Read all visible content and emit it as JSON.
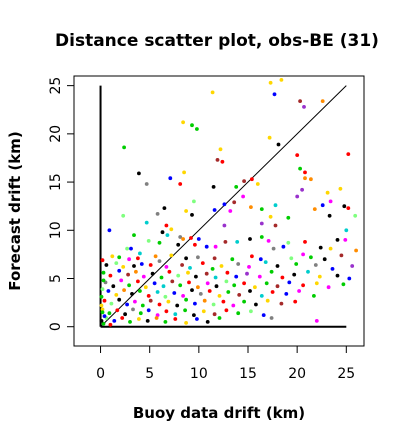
{
  "chart_data": {
    "type": "scatter",
    "title": "Distance scatter plot, obs-BE (31)",
    "xlabel": "Buoy data drift (km)",
    "ylabel": "Forecast drift (km)",
    "xlim": [
      -2.7,
      26.8
    ],
    "ylim": [
      -2.0,
      26.0
    ],
    "xticks": [
      0,
      5,
      10,
      15,
      20,
      25
    ],
    "yticks": [
      0,
      5,
      10,
      15,
      20,
      25
    ],
    "grid": false,
    "reference_lines": [
      {
        "name": "identity",
        "x": [
          0,
          25
        ],
        "y": [
          0,
          25
        ]
      },
      {
        "name": "x-axis-bar",
        "x": [
          0,
          25
        ],
        "y": [
          0,
          0
        ]
      },
      {
        "name": "y-axis-bar",
        "x": [
          0,
          0
        ],
        "y": [
          0,
          25
        ]
      }
    ],
    "colors": [
      "#000000",
      "#ff0000",
      "#00cd00",
      "#0000ff",
      "#00cdcd",
      "#ff00ff",
      "#ffd700",
      "#808080",
      "#7fff7f",
      "#a52a2a",
      "#ff8c00",
      "#9932cc"
    ],
    "points": [
      [
        17.3,
        25.3,
        6
      ],
      [
        18.4,
        25.6,
        6
      ],
      [
        11.4,
        24.3,
        6
      ],
      [
        17.7,
        24.1,
        3
      ],
      [
        20.3,
        23.4,
        9
      ],
      [
        22.6,
        23.4,
        10
      ],
      [
        20.7,
        22.8,
        11
      ],
      [
        8.4,
        21.2,
        6
      ],
      [
        9.3,
        20.9,
        2
      ],
      [
        9.8,
        20.5,
        2
      ],
      [
        17.2,
        19.6,
        6
      ],
      [
        18.1,
        18.9,
        0
      ],
      [
        2.4,
        18.6,
        2
      ],
      [
        12.2,
        18.4,
        6
      ],
      [
        20.0,
        17.8,
        1
      ],
      [
        25.2,
        17.9,
        1
      ],
      [
        11.9,
        17.3,
        9
      ],
      [
        12.4,
        17.1,
        1
      ],
      [
        20.3,
        16.4,
        2
      ],
      [
        20.8,
        16.0,
        1
      ],
      [
        3.9,
        15.9,
        0
      ],
      [
        8.5,
        16.0,
        6
      ],
      [
        15.4,
        15.3,
        1
      ],
      [
        16.0,
        14.8,
        6
      ],
      [
        14.6,
        15.1,
        9
      ],
      [
        20.8,
        15.4,
        10
      ],
      [
        21.4,
        15.3,
        10
      ],
      [
        7.1,
        15.4,
        3
      ],
      [
        13.8,
        14.5,
        2
      ],
      [
        23.1,
        13.9,
        6
      ],
      [
        24.4,
        14.3,
        6
      ],
      [
        4.7,
        14.8,
        7
      ],
      [
        8.1,
        14.8,
        1
      ],
      [
        11.5,
        14.5,
        0
      ],
      [
        20.5,
        14.2,
        11
      ],
      [
        14.5,
        13.5,
        5
      ],
      [
        17.8,
        12.6,
        4
      ],
      [
        20.0,
        13.5,
        11
      ],
      [
        9.5,
        13.0,
        8
      ],
      [
        15.3,
        12.4,
        10
      ],
      [
        13.6,
        12.9,
        9
      ],
      [
        12.6,
        12.7,
        3
      ],
      [
        22.6,
        12.6,
        3
      ],
      [
        23.4,
        13.0,
        5
      ],
      [
        24.8,
        12.5,
        0
      ],
      [
        25.9,
        11.5,
        8
      ],
      [
        25.2,
        12.3,
        1
      ],
      [
        6.5,
        12.3,
        0
      ],
      [
        8.7,
        12.0,
        6
      ],
      [
        11.6,
        12.1,
        3
      ],
      [
        13.2,
        12.0,
        5
      ],
      [
        16.4,
        12.2,
        2
      ],
      [
        17.3,
        11.4,
        6
      ],
      [
        19.1,
        11.3,
        2
      ],
      [
        21.8,
        12.2,
        10
      ],
      [
        9.3,
        11.6,
        0
      ],
      [
        2.3,
        11.5,
        8
      ],
      [
        5.8,
        11.7,
        7
      ],
      [
        4.7,
        10.8,
        4
      ],
      [
        16.4,
        10.7,
        11
      ],
      [
        17.8,
        10.5,
        9
      ],
      [
        23.3,
        11.5,
        0
      ],
      [
        12.6,
        10.5,
        11
      ],
      [
        6.7,
        10.5,
        1
      ],
      [
        7.2,
        10.1,
        6
      ],
      [
        0.9,
        10.0,
        3
      ],
      [
        6.3,
        9.8,
        0
      ],
      [
        3.4,
        9.5,
        2
      ],
      [
        6.8,
        9.5,
        4
      ],
      [
        8.1,
        9.3,
        7
      ],
      [
        8.4,
        9.1,
        10
      ],
      [
        9.2,
        9.2,
        1
      ],
      [
        10.0,
        9.1,
        3
      ],
      [
        15.2,
        9.1,
        0
      ],
      [
        16.4,
        9.3,
        2
      ],
      [
        17.1,
        8.9,
        5
      ],
      [
        19.1,
        8.7,
        8
      ],
      [
        20.8,
        8.8,
        1
      ],
      [
        24.1,
        9.0,
        0
      ],
      [
        25.0,
        10.0,
        4
      ],
      [
        24.9,
        9.0,
        5
      ],
      [
        4.9,
        8.9,
        8
      ],
      [
        6.0,
        8.7,
        2
      ],
      [
        7.9,
        8.5,
        0
      ],
      [
        9.6,
        8.5,
        1
      ],
      [
        10.8,
        8.3,
        3
      ],
      [
        11.7,
        8.3,
        5
      ],
      [
        12.7,
        8.8,
        9
      ],
      [
        13.9,
        8.8,
        4
      ],
      [
        17.6,
        8.1,
        7
      ],
      [
        18.6,
        8.3,
        3
      ],
      [
        22.4,
        8.2,
        0
      ],
      [
        23.4,
        8.1,
        6
      ],
      [
        26.0,
        7.9,
        10
      ],
      [
        2.7,
        8.1,
        8
      ],
      [
        3.1,
        8.1,
        3
      ],
      [
        4.0,
        7.6,
        4
      ],
      [
        1.2,
        7.3,
        6
      ],
      [
        1.9,
        7.2,
        2
      ],
      [
        2.9,
        7.0,
        5
      ],
      [
        3.8,
        7.1,
        1
      ],
      [
        5.6,
        7.3,
        10
      ],
      [
        7.2,
        7.4,
        6
      ],
      [
        8.7,
        7.1,
        0
      ],
      [
        9.9,
        7.2,
        7
      ],
      [
        11.6,
        7.1,
        9
      ],
      [
        13.4,
        7.0,
        2
      ],
      [
        15.4,
        7.3,
        1
      ],
      [
        16.3,
        7.0,
        3
      ],
      [
        19.4,
        7.1,
        8
      ],
      [
        20.6,
        7.5,
        5
      ],
      [
        21.4,
        7.2,
        2
      ],
      [
        22.8,
        7.0,
        0
      ],
      [
        24.5,
        7.4,
        9
      ],
      [
        0.6,
        6.4,
        0
      ],
      [
        1.6,
        6.6,
        8
      ],
      [
        2.3,
        6.2,
        6
      ],
      [
        3.4,
        6.3,
        0
      ],
      [
        4.2,
        6.5,
        3
      ],
      [
        5.1,
        6.4,
        1
      ],
      [
        6.0,
        6.8,
        7
      ],
      [
        6.7,
        6.2,
        5
      ],
      [
        8.3,
        6.4,
        9
      ],
      [
        9.1,
        6.1,
        4
      ],
      [
        10.4,
        6.6,
        1
      ],
      [
        11.4,
        6.0,
        2
      ],
      [
        12.3,
        6.3,
        6
      ],
      [
        14.0,
        6.5,
        7
      ],
      [
        15.1,
        6.2,
        5
      ],
      [
        16.8,
        6.7,
        4
      ],
      [
        18.0,
        6.3,
        0
      ],
      [
        19.9,
        6.5,
        2
      ],
      [
        21.9,
        6.4,
        7
      ],
      [
        23.6,
        6.0,
        3
      ],
      [
        25.6,
        6.3,
        11
      ],
      [
        0.3,
        5.6,
        2
      ],
      [
        1.0,
        5.3,
        1
      ],
      [
        1.9,
        5.8,
        3
      ],
      [
        2.8,
        5.4,
        9
      ],
      [
        3.6,
        5.7,
        10
      ],
      [
        4.4,
        5.2,
        5
      ],
      [
        5.3,
        5.5,
        0
      ],
      [
        6.2,
        5.1,
        2
      ],
      [
        7.0,
        5.7,
        1
      ],
      [
        7.9,
        5.3,
        8
      ],
      [
        8.9,
        5.6,
        6
      ],
      [
        9.7,
        5.2,
        0
      ],
      [
        10.8,
        5.5,
        9
      ],
      [
        11.7,
        5.1,
        4
      ],
      [
        12.9,
        5.6,
        1
      ],
      [
        13.8,
        5.2,
        3
      ],
      [
        14.9,
        5.5,
        11
      ],
      [
        16.2,
        5.2,
        5
      ],
      [
        17.4,
        5.7,
        2
      ],
      [
        18.5,
        5.1,
        1
      ],
      [
        19.7,
        5.4,
        0
      ],
      [
        21.1,
        5.7,
        4
      ],
      [
        22.3,
        5.2,
        6
      ],
      [
        24.1,
        5.3,
        0
      ],
      [
        25.3,
        5.0,
        3
      ],
      [
        0.5,
        4.6,
        7
      ],
      [
        1.3,
        4.2,
        0
      ],
      [
        2.1,
        4.8,
        5
      ],
      [
        2.9,
        4.3,
        2
      ],
      [
        3.8,
        4.7,
        1
      ],
      [
        4.6,
        4.1,
        6
      ],
      [
        5.5,
        4.5,
        3
      ],
      [
        6.4,
        4.2,
        4
      ],
      [
        7.3,
        4.7,
        9
      ],
      [
        8.1,
        4.3,
        2
      ],
      [
        9.0,
        4.6,
        1
      ],
      [
        9.9,
        4.1,
        10
      ],
      [
        10.9,
        4.5,
        5
      ],
      [
        11.8,
        4.2,
        0
      ],
      [
        12.8,
        4.7,
        8
      ],
      [
        13.6,
        4.3,
        2
      ],
      [
        14.6,
        4.5,
        1
      ],
      [
        15.7,
        4.1,
        6
      ],
      [
        16.9,
        4.5,
        2
      ],
      [
        18.0,
        4.2,
        9
      ],
      [
        19.2,
        4.6,
        3
      ],
      [
        20.6,
        4.3,
        1
      ],
      [
        22.0,
        4.5,
        6
      ],
      [
        23.2,
        4.1,
        5
      ],
      [
        24.7,
        4.4,
        2
      ],
      [
        0.8,
        3.7,
        3
      ],
      [
        1.6,
        3.3,
        6
      ],
      [
        2.4,
        3.8,
        10
      ],
      [
        3.2,
        3.4,
        0
      ],
      [
        4.0,
        3.7,
        2
      ],
      [
        4.9,
        3.2,
        1
      ],
      [
        5.8,
        3.6,
        4
      ],
      [
        6.6,
        3.1,
        8
      ],
      [
        7.5,
        3.5,
        3
      ],
      [
        8.4,
        3.2,
        5
      ],
      [
        9.3,
        3.8,
        0
      ],
      [
        10.2,
        3.4,
        7
      ],
      [
        11.1,
        3.7,
        1
      ],
      [
        12.1,
        3.2,
        6
      ],
      [
        13.0,
        3.6,
        2
      ],
      [
        14.1,
        3.3,
        9
      ],
      [
        15.2,
        3.7,
        0
      ],
      [
        16.4,
        3.2,
        4
      ],
      [
        17.5,
        3.6,
        1
      ],
      [
        18.9,
        3.4,
        3
      ],
      [
        20.2,
        3.7,
        5
      ],
      [
        21.7,
        3.2,
        2
      ],
      [
        0.4,
        2.7,
        1
      ],
      [
        1.1,
        2.4,
        8
      ],
      [
        1.9,
        2.8,
        0
      ],
      [
        2.7,
        2.3,
        3
      ],
      [
        3.5,
        2.6,
        5
      ],
      [
        4.3,
        2.2,
        2
      ],
      [
        5.1,
        2.7,
        9
      ],
      [
        6.0,
        2.3,
        1
      ],
      [
        6.9,
        2.6,
        6
      ],
      [
        7.8,
        2.2,
        0
      ],
      [
        8.7,
        2.8,
        2
      ],
      [
        9.6,
        2.4,
        3
      ],
      [
        10.6,
        2.7,
        10
      ],
      [
        11.5,
        2.3,
        8
      ],
      [
        12.5,
        2.6,
        1
      ],
      [
        13.5,
        2.2,
        5
      ],
      [
        14.6,
        2.6,
        2
      ],
      [
        15.8,
        2.3,
        0
      ],
      [
        17.0,
        2.7,
        6
      ],
      [
        18.4,
        2.4,
        9
      ],
      [
        19.8,
        2.6,
        1
      ],
      [
        0.2,
        1.8,
        6
      ],
      [
        0.9,
        1.4,
        2
      ],
      [
        1.7,
        1.7,
        1
      ],
      [
        2.5,
        1.3,
        0
      ],
      [
        3.3,
        1.8,
        7
      ],
      [
        4.1,
        1.4,
        2
      ],
      [
        4.9,
        1.7,
        3
      ],
      [
        5.8,
        1.2,
        5
      ],
      [
        6.7,
        1.6,
        1
      ],
      [
        7.6,
        1.3,
        4
      ],
      [
        8.6,
        1.7,
        2
      ],
      [
        9.5,
        1.2,
        0
      ],
      [
        10.5,
        1.6,
        6
      ],
      [
        11.6,
        1.3,
        9
      ],
      [
        12.8,
        1.7,
        1
      ],
      [
        14.0,
        1.4,
        2
      ],
      [
        15.3,
        1.6,
        8
      ],
      [
        16.6,
        1.2,
        3
      ],
      [
        0.6,
        0.9,
        8
      ],
      [
        1.4,
        0.6,
        3
      ],
      [
        2.2,
        0.9,
        1
      ],
      [
        3.0,
        0.5,
        2
      ],
      [
        3.9,
        0.8,
        6
      ],
      [
        4.8,
        0.6,
        0
      ],
      [
        5.7,
        0.9,
        10
      ],
      [
        6.6,
        0.5,
        2
      ],
      [
        7.6,
        0.8,
        1
      ],
      [
        8.7,
        0.4,
        6
      ],
      [
        9.8,
        0.8,
        3
      ],
      [
        10.9,
        0.5,
        0
      ],
      [
        12.1,
        0.9,
        2
      ],
      [
        17.4,
        0.9,
        7
      ],
      [
        22.0,
        0.6,
        5
      ],
      [
        0.3,
        0.3,
        2
      ],
      [
        1.0,
        0.2,
        1
      ],
      [
        0.1,
        3.1,
        2
      ],
      [
        0.2,
        3.9,
        8
      ],
      [
        0.1,
        2.2,
        6
      ],
      [
        0.3,
        4.8,
        2
      ],
      [
        0.2,
        6.9,
        1
      ],
      [
        0.4,
        1.1,
        3
      ],
      [
        0.1,
        0.6,
        0
      ],
      [
        0.2,
        1.5,
        2
      ]
    ]
  }
}
